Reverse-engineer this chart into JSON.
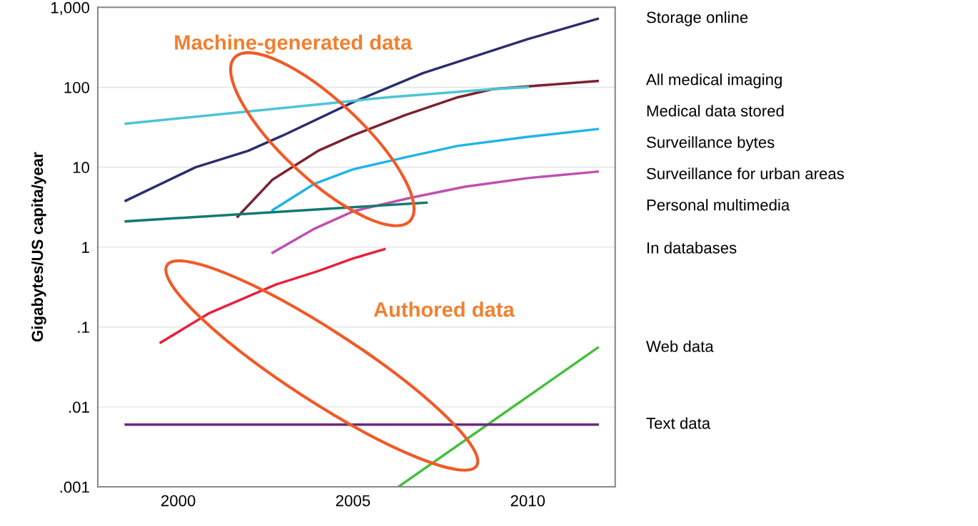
{
  "chart_data": {
    "type": "line",
    "ylabel": "Gigabytes/US capita/year",
    "log": "y",
    "grid": "y",
    "legend": false,
    "marker": "none",
    "line_style": "solid",
    "xlim": [
      1997.7,
      2012.5
    ],
    "xticks": [
      2000,
      2005,
      2010
    ],
    "ylim": [
      0.001,
      1000
    ],
    "yticks": [
      {
        "value": 0.001,
        "label": ".001"
      },
      {
        "value": 0.01,
        "label": ".01"
      },
      {
        "value": 0.1,
        "label": ".1"
      },
      1,
      10,
      100,
      {
        "value": 1000,
        "label": "1,000"
      }
    ],
    "annotations": [
      "Machine-generated data",
      "Authored data"
    ],
    "series": [
      {
        "name": "Storage online",
        "color": "#2b2d6e",
        "x": [
          1998.5,
          2000.5,
          2002,
          2003,
          2005,
          2007,
          2010,
          2012
        ],
        "values": [
          3.8,
          10,
          16,
          25,
          65,
          150,
          400,
          720
        ]
      },
      {
        "name": "All medical imaging",
        "color": "#7b2230",
        "x": [
          2001.7,
          2002.7,
          2004,
          2005,
          2006.5,
          2008,
          2009,
          2012
        ],
        "values": [
          2.4,
          7,
          16,
          25,
          45,
          75,
          95,
          120
        ]
      },
      {
        "name": "Medical data stored",
        "color": "#4cc4d8",
        "x": [
          1998.5,
          2003,
          2006,
          2009,
          2010
        ],
        "values": [
          35,
          55,
          75,
          95,
          100
        ]
      },
      {
        "name": "Surveillance bytes",
        "color": "#1fb4e8",
        "x": [
          2002.7,
          2003.9,
          2005,
          2006.6,
          2008,
          2010,
          2012
        ],
        "values": [
          2.9,
          6.2,
          9.4,
          13.6,
          18.5,
          24,
          30
        ]
      },
      {
        "name": "Surveillance for urban areas",
        "color": "#c14fb0",
        "x": [
          2002.7,
          2003.9,
          2005,
          2006.6,
          2008.2,
          2010,
          2012
        ],
        "values": [
          0.85,
          1.7,
          2.8,
          4.1,
          5.7,
          7.3,
          8.8
        ]
      },
      {
        "name": "Personal multimedia",
        "color": "#117a72",
        "x": [
          1998.5,
          2007.1
        ],
        "values": [
          2.1,
          3.6
        ]
      },
      {
        "name": "In databases",
        "color": "#e8203c",
        "x": [
          1999.5,
          2000.9,
          2002.8,
          2004,
          2005,
          2005.9
        ],
        "values": [
          0.064,
          0.15,
          0.34,
          0.5,
          0.72,
          0.94
        ]
      },
      {
        "name": "Web data",
        "color": "#44c03c",
        "x": [
          2006.3,
          2012
        ],
        "values": [
          0.001,
          0.055
        ]
      },
      {
        "name": "Text data",
        "color": "#6b2a7e",
        "x": [
          1998.5,
          2012
        ],
        "values": [
          0.006,
          0.006
        ]
      }
    ]
  }
}
